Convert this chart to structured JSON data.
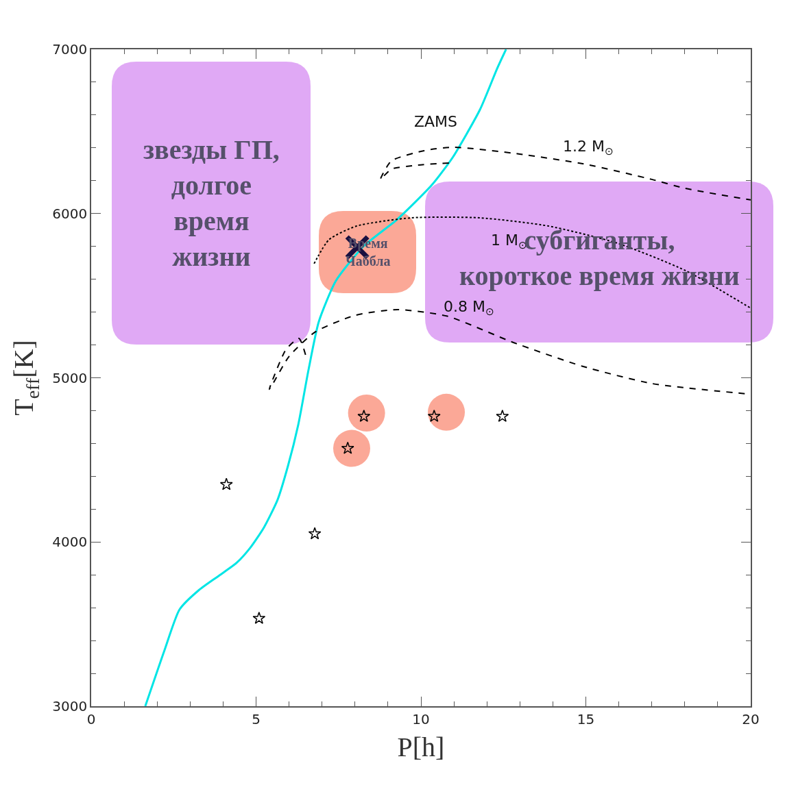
{
  "chart_data": {
    "type": "scatter",
    "xlabel": "P[h]",
    "ylabel": "T$_{eff}$[K]",
    "xlim": [
      0,
      20
    ],
    "ylim": [
      3000,
      7000
    ],
    "xticks": [
      0,
      5,
      10,
      15,
      20
    ],
    "yticks": [
      3000,
      4000,
      5000,
      6000,
      7000
    ],
    "grid": false,
    "series": [
      {
        "type": "line",
        "color": "#00e5e5",
        "line_style": "solid",
        "x": [
          1.64,
          2.22,
          2.68,
          3.26,
          3.89,
          4.41,
          4.82,
          5.24,
          5.65,
          5.97,
          6.28,
          6.59,
          6.9,
          7.42,
          8.25,
          9.29,
          10.33,
          10.96,
          11.79,
          12.31,
          12.58
        ],
        "values": [
          3000,
          3339,
          3589,
          3706,
          3797,
          3873,
          3964,
          4089,
          4256,
          4465,
          4715,
          5048,
          5340,
          5590,
          5799,
          5966,
          6174,
          6341,
          6633,
          6883,
          7000
        ]
      },
      {
        "type": "line",
        "color": "#000000",
        "line_style": "dashed",
        "x": [
          10.85,
          9.9,
          9.1,
          8.77,
          9.1,
          10.1,
          11.0,
          13.0,
          15.0,
          17.0,
          18.0,
          20.0
        ],
        "values": [
          6308,
          6295,
          6270,
          6208,
          6320,
          6383,
          6404,
          6362,
          6300,
          6208,
          6154,
          6083
        ]
      },
      {
        "type": "line",
        "color": "#000000",
        "line_style": "dotted",
        "x": [
          6.76,
          7.21,
          8.05,
          9.71,
          11.79,
          13.87,
          15.95,
          18.02,
          20.0
        ],
        "values": [
          5695,
          5841,
          5924,
          5974,
          5974,
          5924,
          5820,
          5653,
          5424
        ]
      },
      {
        "type": "line",
        "color": "#000000",
        "line_style": "dashed",
        "x": [
          6.5,
          6.3,
          5.9,
          5.4,
          5.5,
          6.0,
          6.8,
          8.0,
          9.3,
          10.8,
          12.8,
          14.9,
          17.0,
          20.0
        ],
        "values": [
          5140,
          5240,
          5170,
          4930,
          4960,
          5130,
          5280,
          5380,
          5415,
          5375,
          5215,
          5070,
          4965,
          4900
        ]
      },
      {
        "color": "#f98b74",
        "marker": "circle",
        "x": [
          7.9,
          8.35,
          10.77
        ],
        "values": [
          4570,
          4785,
          4790
        ]
      },
      {
        "color": "#000000",
        "marker": "star",
        "x": [
          4.1,
          6.78,
          5.09,
          7.78,
          8.27,
          10.4,
          12.47
        ],
        "values": [
          4350,
          4050,
          3535,
          4570,
          4765,
          4765,
          4765
        ]
      },
      {
        "color": "#1a1040",
        "marker": "cross",
        "x": [
          8.07
        ],
        "values": [
          5795
        ]
      }
    ],
    "annotations": [
      "ZAMS",
      "1.2 M$_{⊙}$",
      "1 M$_{⊙}$",
      "0.8 M$_{⊙}$",
      "звезды ГП,\nдолгое\nвремя\nжизни",
      "Время\nЧаббла",
      "субгиганты,\nкороткое время жизни"
    ]
  }
}
